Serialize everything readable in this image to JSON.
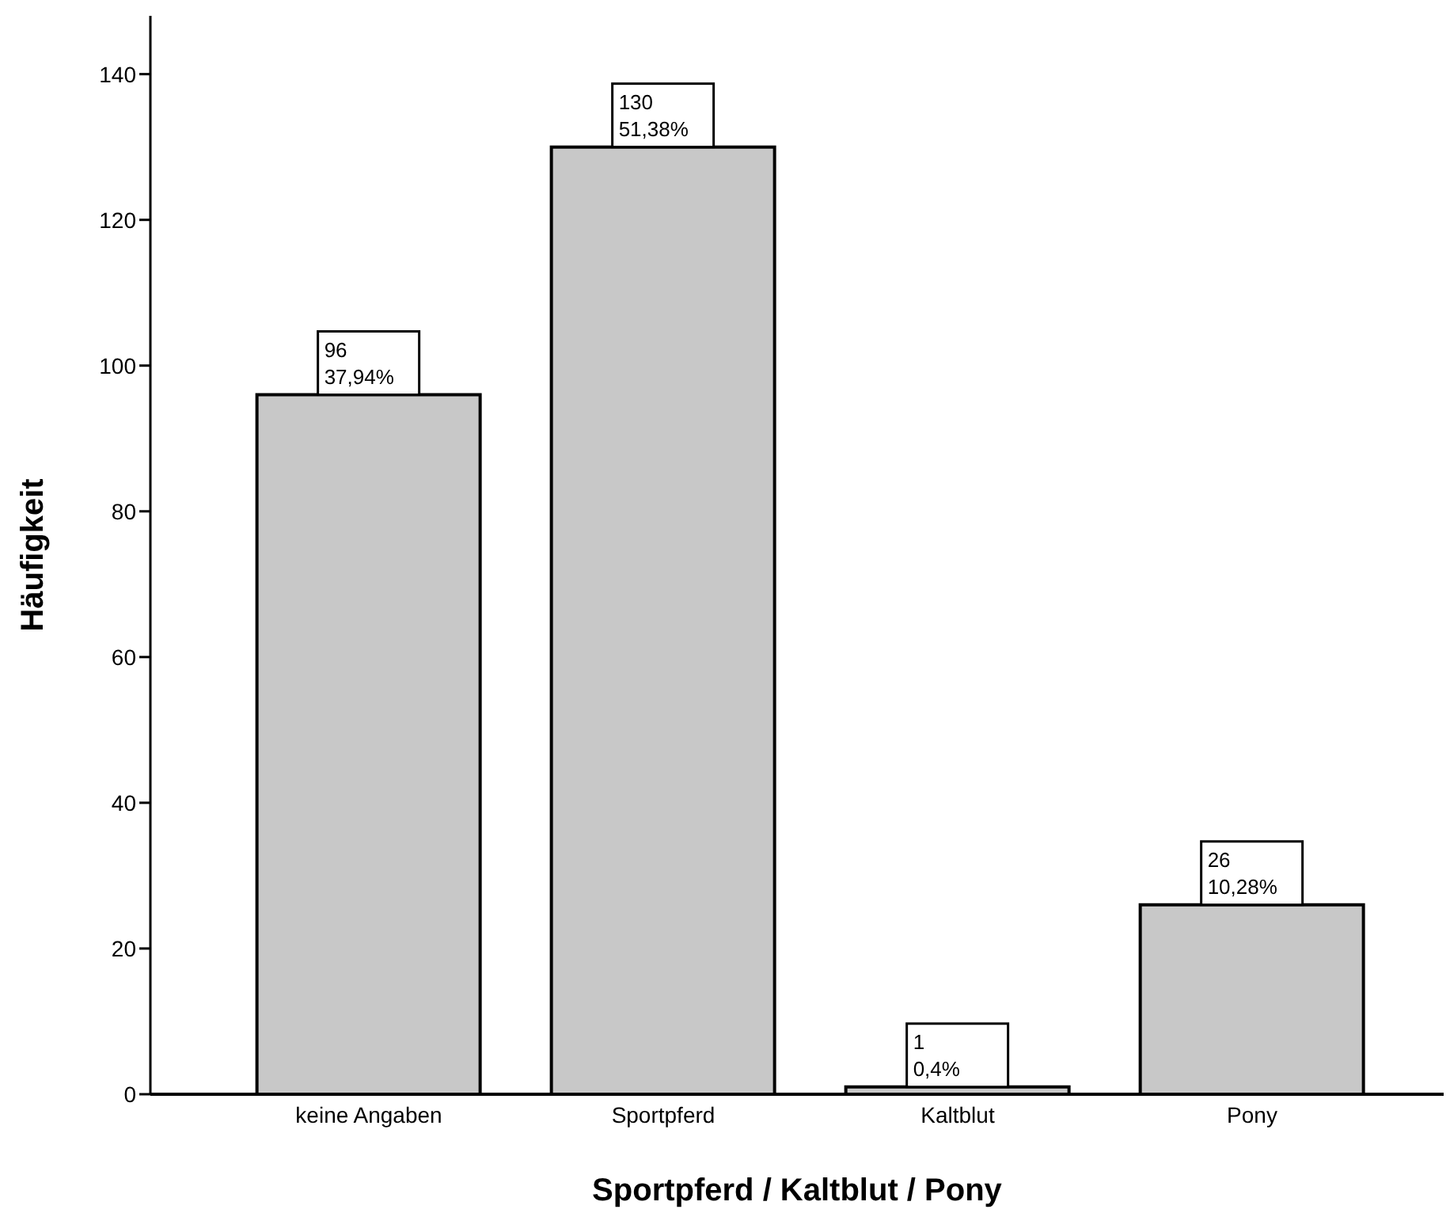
{
  "chart_data": {
    "type": "bar",
    "xlabel": "Sportpferd / Kaltblut / Pony",
    "ylabel": "Häufigkeit",
    "categories": [
      "keine Angaben",
      "Sportpferd",
      "Kaltblut",
      "Pony"
    ],
    "values": [
      96,
      130,
      1,
      26
    ],
    "value_labels": [
      "96\n37,94%",
      "130\n51,38%",
      "1\n0,4%",
      "26\n10,28%"
    ],
    "color": "#c8c8c8",
    "ylim": [
      0,
      148
    ],
    "yticks": [
      0,
      20,
      40,
      60,
      80,
      100,
      120,
      140
    ],
    "grid": false,
    "legend": false
  }
}
